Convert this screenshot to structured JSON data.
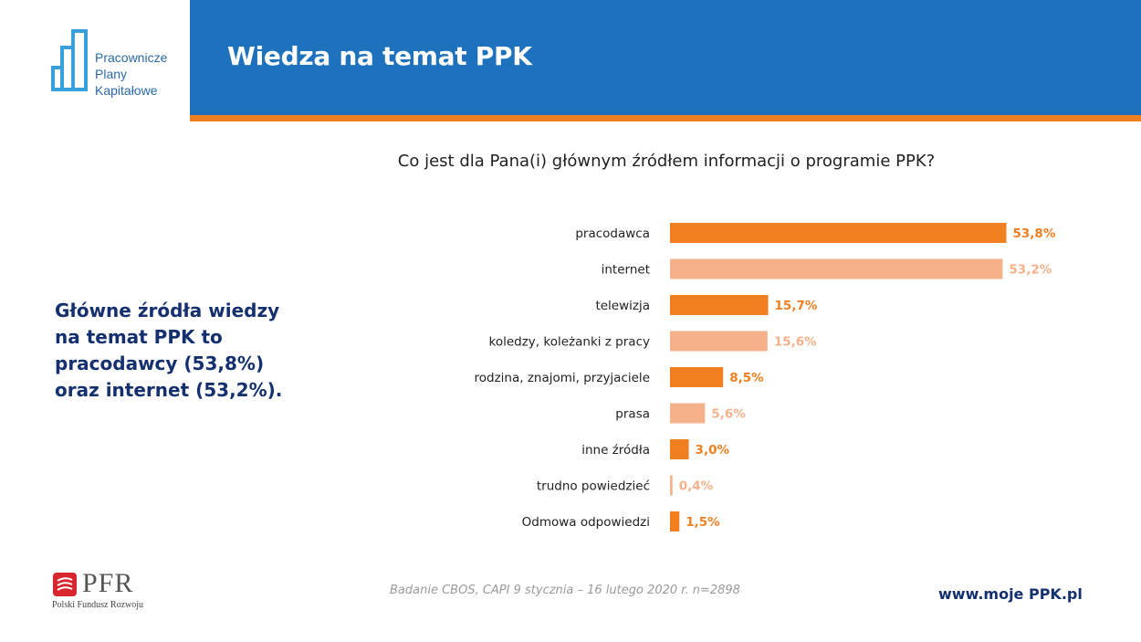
{
  "brand": {
    "logo_lines": [
      "Pracownicze",
      "Plany",
      "Kapitałowe"
    ],
    "primary_color": "#1e72bd",
    "accent_color": "#f07f20"
  },
  "header": {
    "title": "Wiedza na temat PPK"
  },
  "summary": {
    "lines": [
      "Główne źródła wiedzy",
      "na temat PPK to",
      "pracodawcy (53,8%)",
      "oraz internet (53,2%)."
    ]
  },
  "chart_data": {
    "type": "bar",
    "orientation": "horizontal",
    "title": "Co jest dla Pana(i) głównym źródłem informacji o programie PPK?",
    "categories": [
      "pracodawca",
      "internet",
      "telewizja",
      "koledzy, koleżanki z pracy",
      "rodzina, znajomi, przyjaciele",
      "prasa",
      "inne źródła",
      "trudno powiedzieć",
      "Odmowa odpowiedzi"
    ],
    "values": [
      53.8,
      53.2,
      15.7,
      15.6,
      8.5,
      5.6,
      3.0,
      0.4,
      1.5
    ],
    "value_labels": [
      "53,8%",
      "53,2%",
      "15,7%",
      "15,6%",
      "8,5%",
      "5,6%",
      "3,0%",
      "0,4%",
      "1,5%"
    ],
    "colors": [
      "#f07f20",
      "#f5b28a"
    ],
    "xlim": [
      0,
      100
    ],
    "grid": false,
    "legend": "none"
  },
  "footer": {
    "source": "Badanie CBOS, CAPI 9 stycznia – 16 lutego 2020 r. n=2898",
    "url": "www.moje PPK.pl",
    "pfr_name": "PFR",
    "pfr_full": "Polski Fundusz Rozwoju"
  }
}
